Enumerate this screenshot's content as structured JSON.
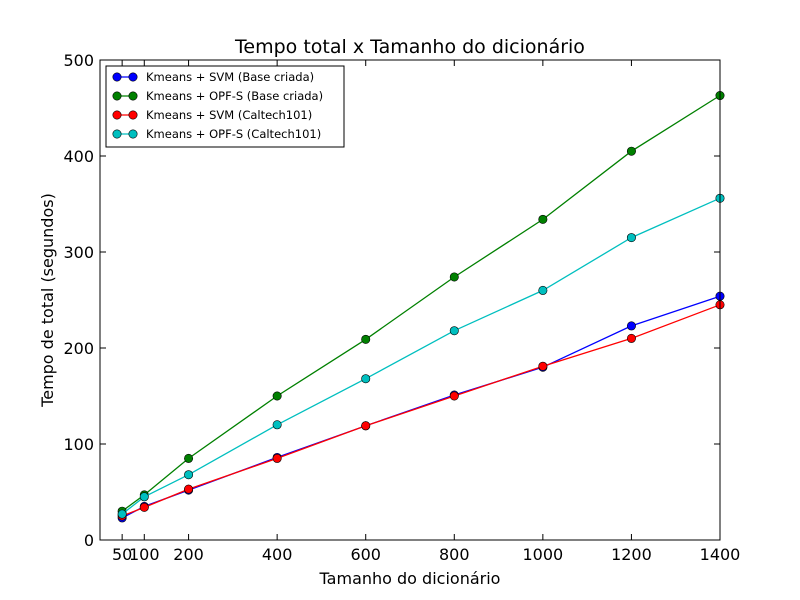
{
  "chart_data": {
    "type": "line",
    "title": "Tempo total x Tamanho do dicionário",
    "xlabel": "Tamanho do dicionário",
    "ylabel": "Tempo de total (segundos)",
    "xlim": [
      0,
      1400
    ],
    "ylim": [
      0,
      500
    ],
    "x_ticks": [
      50,
      100,
      200,
      400,
      600,
      800,
      1000,
      1200,
      1400
    ],
    "y_ticks": [
      0,
      100,
      200,
      300,
      400,
      500
    ],
    "grid": false,
    "legend_position": "top-left",
    "x": [
      50,
      100,
      200,
      400,
      600,
      800,
      1000,
      1200,
      1400
    ],
    "series": [
      {
        "name": "Kmeans + SVM (Base criada)",
        "color": "#0000ff",
        "values": [
          23,
          35,
          52,
          86,
          119,
          151,
          180,
          223,
          254
        ]
      },
      {
        "name": "Kmeans + OPF-S (Base criada)",
        "color": "#008000",
        "values": [
          30,
          47,
          85,
          150,
          209,
          274,
          334,
          405,
          463
        ]
      },
      {
        "name": "Kmeans + SVM (Caltech101)",
        "color": "#ff0000",
        "values": [
          25,
          34,
          53,
          85,
          119,
          150,
          181,
          210,
          245
        ]
      },
      {
        "name": "Kmeans + OPF-S (Caltech101)",
        "color": "#00bfbf",
        "values": [
          27,
          45,
          68,
          120,
          168,
          218,
          260,
          315,
          356
        ]
      }
    ]
  }
}
